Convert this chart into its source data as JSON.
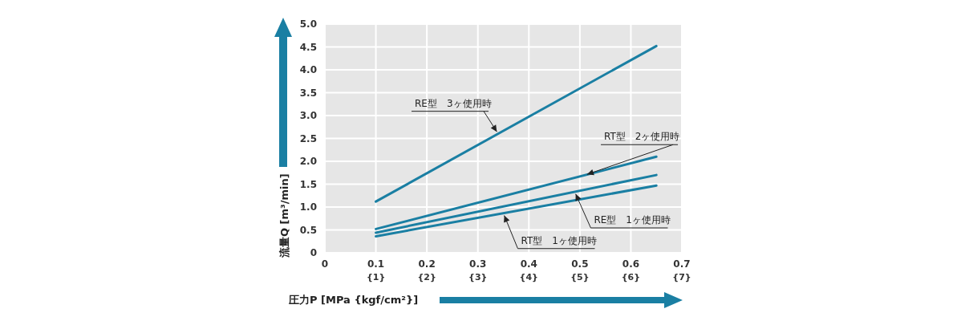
{
  "chart_data": {
    "type": "line",
    "xlabel": "圧力P [MPa {kgf/cm²}]",
    "ylabel": "流量Q [m³/min]",
    "xlim": [
      0,
      0.7
    ],
    "ylim": [
      0,
      5
    ],
    "xticks": [
      0,
      0.1,
      0.2,
      0.3,
      0.4,
      0.5,
      0.6,
      0.7
    ],
    "x2lim": [
      0,
      7
    ],
    "x2ticks": [
      {
        "value": 1,
        "label": "{1}"
      },
      {
        "value": 2,
        "label": "{2}"
      },
      {
        "value": 3,
        "label": "{3}"
      },
      {
        "value": 4,
        "label": "{4}"
      },
      {
        "value": 5,
        "label": "{5}"
      },
      {
        "value": 6,
        "label": "{6}"
      },
      {
        "value": 7,
        "label": "{7}"
      }
    ],
    "yticks": [
      0,
      0.5,
      {
        "value": 1,
        "label": "1.0"
      },
      1.5,
      {
        "value": 2,
        "label": "2.0"
      },
      2.5,
      {
        "value": 3,
        "label": "3.0"
      },
      3.5,
      {
        "value": 4,
        "label": "4.0"
      },
      4.5,
      {
        "value": 5,
        "label": "5.0"
      }
    ],
    "x": [
      0.1,
      0.65
    ],
    "grid": true,
    "marker": "none",
    "line_style": "solid",
    "series": [
      {
        "name": "RE型　3ヶ使用時",
        "color": "#1a7fa3",
        "values": [
          1.12,
          4.52
        ]
      },
      {
        "name": "RT型　2ヶ使用時",
        "color": "#1a7fa3",
        "values": [
          0.52,
          2.1
        ]
      },
      {
        "name": "RE型　1ヶ使用時",
        "color": "#1a7fa3",
        "values": [
          0.44,
          1.7
        ]
      },
      {
        "name": "RT型　1ヶ使用時",
        "color": "#1a7fa3",
        "values": [
          0.36,
          1.47
        ]
      }
    ]
  }
}
